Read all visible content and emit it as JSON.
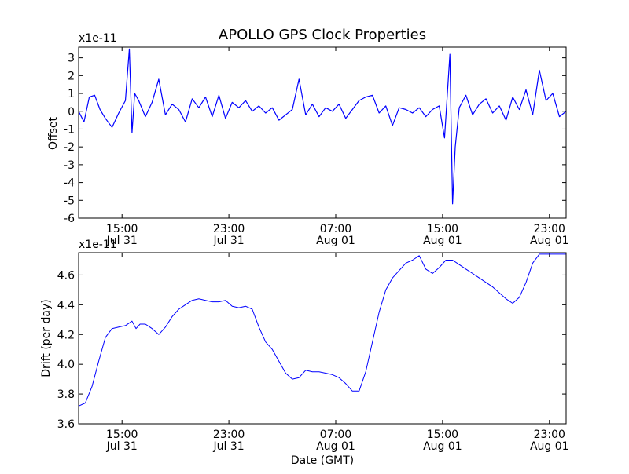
{
  "figure": {
    "title": "APOLLO GPS Clock Properties",
    "series_color": "#0000ff"
  },
  "chart_data": [
    {
      "type": "line",
      "title": "APOLLO GPS Clock Properties",
      "xlabel": "",
      "ylabel": "Offset",
      "y_multiplier": "x1e-11",
      "x_unit": "hours since 2012-07-31 11:45 GMT",
      "xlim": [
        0,
        36.5
      ],
      "ylim": [
        -6,
        3.6
      ],
      "yticks": [
        -6,
        -5,
        -4,
        -3,
        -2,
        -1,
        0,
        1,
        2,
        3
      ],
      "ytick_labels": [
        "-6",
        "-5",
        "-4",
        "-3",
        "-2",
        "-1",
        "0",
        "1",
        "2",
        "3"
      ],
      "xticks": [
        3.25,
        11.25,
        19.25,
        27.25,
        35.25
      ],
      "xtick_labels": [
        [
          "15:00",
          "Jul 31"
        ],
        [
          "23:00",
          "Jul 31"
        ],
        [
          "07:00",
          "Aug 01"
        ],
        [
          "15:00",
          "Aug 01"
        ],
        [
          "23:00",
          "Aug 01"
        ]
      ],
      "grid": false,
      "series": [
        {
          "x": [
            0,
            0.4,
            0.8,
            1.2,
            1.6,
            2.0,
            2.5,
            3.0,
            3.5,
            3.8,
            4.0,
            4.2,
            4.5,
            5.0,
            5.5,
            6.0,
            6.5,
            7.0,
            7.5,
            8.0,
            8.5,
            9.0,
            9.5,
            10.0,
            10.5,
            11.0,
            11.5,
            12.0,
            12.5,
            13.0,
            13.5,
            14.0,
            14.5,
            15.0,
            15.5,
            16.0,
            16.5,
            17.0,
            17.5,
            18.0,
            18.5,
            19.0,
            19.5,
            20.0,
            20.5,
            21.0,
            21.5,
            22.0,
            22.5,
            23.0,
            23.5,
            24.0,
            24.5,
            25.0,
            25.5,
            26.0,
            26.5,
            27.0,
            27.4,
            27.8,
            28.0,
            28.2,
            28.5,
            29.0,
            29.5,
            30.0,
            30.5,
            31.0,
            31.5,
            32.0,
            32.5,
            33.0,
            33.5,
            34.0,
            34.5,
            35.0,
            35.5,
            36.0,
            36.5
          ],
          "y": [
            0.0,
            -0.6,
            0.8,
            0.9,
            0.1,
            -0.4,
            -0.9,
            -0.1,
            0.6,
            3.5,
            -1.2,
            1.0,
            0.6,
            -0.3,
            0.5,
            1.8,
            -0.2,
            0.4,
            0.1,
            -0.6,
            0.7,
            0.2,
            0.8,
            -0.3,
            0.9,
            -0.4,
            0.5,
            0.2,
            0.6,
            0.0,
            0.3,
            -0.1,
            0.2,
            -0.5,
            -0.2,
            0.1,
            1.8,
            -0.2,
            0.4,
            -0.3,
            0.2,
            0.0,
            0.4,
            -0.4,
            0.1,
            0.6,
            0.8,
            0.9,
            -0.1,
            0.3,
            -0.8,
            0.2,
            0.1,
            -0.1,
            0.2,
            -0.3,
            0.1,
            0.3,
            -1.5,
            3.2,
            -5.2,
            -2.0,
            0.2,
            0.9,
            -0.2,
            0.4,
            0.7,
            -0.1,
            0.3,
            -0.5,
            0.8,
            0.1,
            1.2,
            -0.2,
            2.3,
            0.6,
            1.0,
            -0.3,
            0.0
          ]
        }
      ]
    },
    {
      "type": "line",
      "title": "",
      "xlabel": "Date (GMT)",
      "ylabel": "Drift (per day)",
      "y_multiplier": "x1e-11",
      "x_unit": "hours since 2012-07-31 11:45 GMT",
      "xlim": [
        0,
        36.5
      ],
      "ylim": [
        3.6,
        4.75
      ],
      "yticks": [
        3.6,
        3.8,
        4.0,
        4.2,
        4.4,
        4.6
      ],
      "ytick_labels": [
        "3.6",
        "3.8",
        "4.0",
        "4.2",
        "4.4",
        "4.6"
      ],
      "xticks": [
        3.25,
        11.25,
        19.25,
        27.25,
        35.25
      ],
      "xtick_labels": [
        [
          "15:00",
          "Jul 31"
        ],
        [
          "23:00",
          "Jul 31"
        ],
        [
          "07:00",
          "Aug 01"
        ],
        [
          "15:00",
          "Aug 01"
        ],
        [
          "23:00",
          "Aug 01"
        ]
      ],
      "grid": false,
      "series": [
        {
          "x": [
            0,
            0.5,
            1.0,
            1.5,
            2.0,
            2.5,
            3.0,
            3.5,
            4.0,
            4.3,
            4.6,
            5.0,
            5.5,
            6.0,
            6.5,
            7.0,
            7.5,
            8.0,
            8.5,
            9.0,
            9.5,
            10.0,
            10.5,
            11.0,
            11.5,
            12.0,
            12.5,
            13.0,
            13.5,
            14.0,
            14.5,
            15.0,
            15.5,
            16.0,
            16.5,
            17.0,
            17.5,
            18.0,
            18.5,
            19.0,
            19.5,
            20.0,
            20.5,
            21.0,
            21.5,
            22.0,
            22.5,
            23.0,
            23.5,
            24.0,
            24.5,
            25.0,
            25.5,
            26.0,
            26.5,
            27.0,
            27.5,
            28.0,
            28.5,
            29.0,
            29.5,
            30.0,
            30.5,
            31.0,
            31.5,
            32.0,
            32.5,
            33.0,
            33.5,
            34.0,
            34.5,
            35.0,
            35.5,
            36.0,
            36.5
          ],
          "y": [
            3.72,
            3.74,
            3.85,
            4.02,
            4.18,
            4.24,
            4.25,
            4.26,
            4.29,
            4.24,
            4.27,
            4.27,
            4.24,
            4.2,
            4.25,
            4.32,
            4.37,
            4.4,
            4.43,
            4.44,
            4.43,
            4.42,
            4.42,
            4.43,
            4.39,
            4.38,
            4.39,
            4.37,
            4.25,
            4.15,
            4.1,
            4.02,
            3.94,
            3.9,
            3.91,
            3.96,
            3.95,
            3.95,
            3.94,
            3.93,
            3.91,
            3.87,
            3.82,
            3.82,
            3.95,
            4.15,
            4.35,
            4.5,
            4.58,
            4.63,
            4.68,
            4.7,
            4.73,
            4.64,
            4.61,
            4.65,
            4.7,
            4.7,
            4.67,
            4.64,
            4.61,
            4.58,
            4.55,
            4.52,
            4.48,
            4.44,
            4.41,
            4.45,
            4.55,
            4.68,
            4.74,
            4.74,
            4.74,
            4.74,
            4.74
          ]
        }
      ]
    }
  ]
}
